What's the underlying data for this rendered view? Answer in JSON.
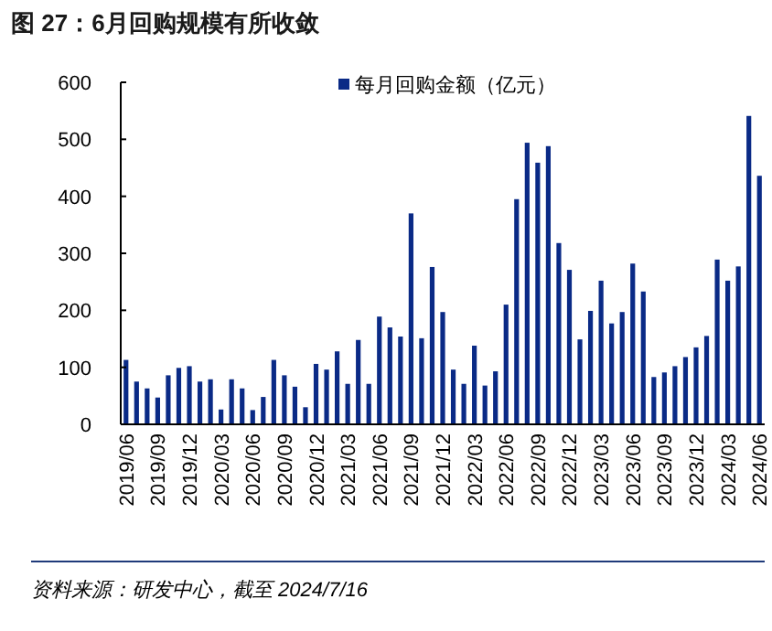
{
  "chart_data": {
    "type": "bar",
    "title": "图 27：6月回购规模有所收敛",
    "categories": [
      "2019/06",
      null,
      null,
      "2019/09",
      null,
      null,
      "2019/12",
      null,
      null,
      "2020/03",
      null,
      null,
      "2020/06",
      null,
      null,
      "2020/09",
      null,
      null,
      "2020/12",
      null,
      null,
      "2021/03",
      null,
      null,
      "2021/06",
      null,
      null,
      "2021/09",
      null,
      null,
      "2021/12",
      null,
      null,
      "2022/03",
      null,
      null,
      "2022/06",
      null,
      null,
      "2022/09",
      null,
      null,
      "2022/12",
      null,
      null,
      "2023/03",
      null,
      null,
      "2023/06",
      null,
      null,
      "2023/09",
      null,
      null,
      "2023/12",
      null,
      null,
      "2024/03",
      null,
      null,
      "2024/06"
    ],
    "series": [
      {
        "name": "每月回购金额（亿元）",
        "color": "#0a2a86",
        "values": [
          113,
          75,
          63,
          47,
          86,
          99,
          102,
          75,
          79,
          26,
          79,
          63,
          25,
          48,
          113,
          86,
          66,
          30,
          106,
          96,
          128,
          71,
          148,
          71,
          189,
          170,
          154,
          370,
          151,
          276,
          197,
          96,
          71,
          138,
          68,
          93,
          210,
          395,
          494,
          459,
          488,
          318,
          271,
          149,
          199,
          252,
          177,
          197,
          282,
          233,
          83,
          91,
          102,
          118,
          135,
          155,
          289,
          252,
          277,
          541,
          436
        ]
      }
    ],
    "ylim": [
      0,
      600
    ],
    "yticks": [
      0,
      100,
      200,
      300,
      400,
      500,
      600
    ],
    "legend": "top right",
    "annotations": [
      "资料来源：研发中心，截至 2024/7/16"
    ]
  }
}
